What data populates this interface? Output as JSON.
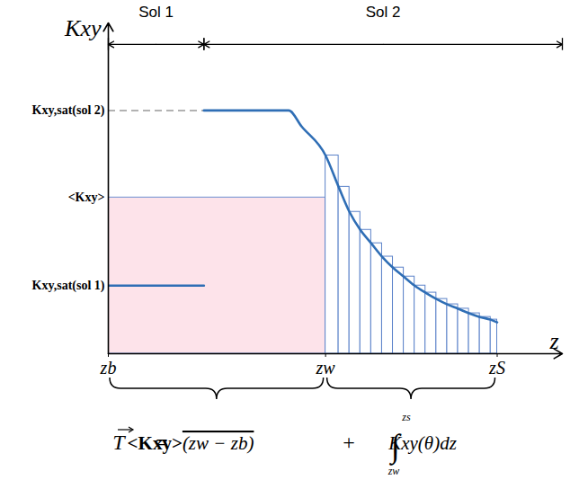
{
  "chart_data": {
    "type": "line",
    "y_label": "Kxy",
    "x_label": "z",
    "xlim": [
      0,
      209
    ],
    "ylim": [
      0,
      136
    ],
    "xticks": [
      {
        "value": 0,
        "label": "zb"
      },
      {
        "value": 100,
        "label": "zw"
      },
      {
        "value": 179,
        "label": "zS"
      }
    ],
    "yticks": [
      {
        "value": 28,
        "label": "Kxy,sat(sol 1)"
      },
      {
        "value": 64.2,
        "label": "<Kxy>"
      },
      {
        "value": 100,
        "label": "Kxy,sat(sol 2)"
      }
    ],
    "layers": [
      {
        "name": "Sol 1",
        "from": 0,
        "to": 44
      },
      {
        "name": "Sol 2",
        "from": 44,
        "to": 209
      }
    ],
    "series": [
      {
        "name": "Sol 1",
        "color": "#2f6eb5",
        "x": [
          0,
          44
        ],
        "values": [
          28,
          28
        ]
      },
      {
        "name": "Sol 2",
        "color": "#2f6eb5",
        "x": [
          44,
          83,
          89,
          100,
          106,
          111,
          116,
          121,
          126,
          131,
          136,
          141,
          146,
          151,
          156,
          161,
          166,
          171,
          176,
          179
        ],
        "values": [
          100,
          100,
          93.4,
          81.5,
          68.6,
          58.3,
          50.9,
          45.4,
          39.9,
          35.4,
          31.7,
          28.0,
          25.1,
          22.5,
          20.3,
          18.5,
          16.6,
          15.1,
          14.0,
          12.9
        ]
      }
    ],
    "mean": {
      "x": [
        0,
        100
      ],
      "value": 64.2,
      "color": "#fde3ea"
    },
    "bars": {
      "bins": [
        100,
        106,
        111,
        116,
        121,
        126,
        131,
        136,
        141,
        146,
        151,
        156,
        161,
        166,
        171,
        176,
        179
      ],
      "heights": [
        81.5,
        68.6,
        58.3,
        50.9,
        45.4,
        39.9,
        35.4,
        31.7,
        28.0,
        25.1,
        22.5,
        20.3,
        18.5,
        16.6,
        15.1,
        14.0
      ],
      "color": "#5b82c9"
    },
    "equation": {
      "lhs": "T",
      "equals": "=",
      "mean_term": "<Kxy>",
      "thickness_term": "(zw − zb)",
      "plus": "+",
      "integral": "∫",
      "upper": "zs",
      "lower": "zw",
      "integrand": "Kxy(θ)dz"
    }
  }
}
